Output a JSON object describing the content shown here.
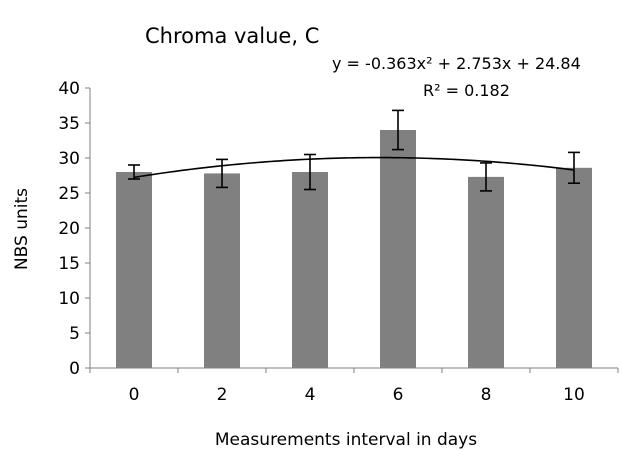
{
  "chart_data": {
    "type": "bar",
    "title": "Chroma value, C",
    "xlabel": "Measurements interval in days",
    "ylabel": "NBS units",
    "categories": [
      "0",
      "2",
      "4",
      "6",
      "8",
      "10"
    ],
    "series": [
      {
        "values": [
          28.0,
          27.8,
          28.0,
          34.0,
          27.3,
          28.6
        ],
        "error": [
          1.0,
          2.0,
          2.5,
          2.8,
          2.0,
          2.2
        ],
        "color": "#808080"
      }
    ],
    "trendline": {
      "type": "polynomial",
      "order": 2,
      "coefficients": [
        -0.363,
        2.753,
        24.84
      ],
      "equation": "y = -0.363x² + 2.753x + 24.84",
      "r_squared": "R² = 0.182"
    },
    "ylim": [
      0,
      40
    ],
    "yticks": [
      "0",
      "5",
      "10",
      "15",
      "20",
      "25",
      "30",
      "35",
      "40"
    ],
    "grid": false,
    "legend": "none"
  }
}
